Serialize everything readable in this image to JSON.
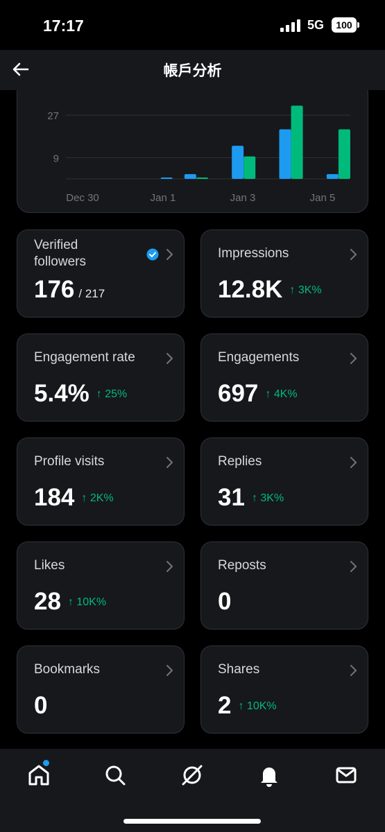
{
  "status_bar": {
    "time": "17:17",
    "network": "5G",
    "battery": "100"
  },
  "header": {
    "title": "帳戶分析"
  },
  "chart_data": {
    "type": "bar",
    "y_ticks": [
      9,
      27
    ],
    "x_tick_labels": [
      "Dec 30",
      "Jan 1",
      "Jan 3",
      "Jan 5"
    ],
    "colors": {
      "blue": "#1d9bf0",
      "green": "#00ba7c"
    },
    "series": [
      {
        "color": "blue",
        "x": [
          4,
          5,
          7,
          9,
          11
        ],
        "values": [
          0.6,
          2,
          14,
          21,
          2
        ]
      },
      {
        "color": "green",
        "x": [
          5.5,
          7.5,
          9.5,
          11.5
        ],
        "values": [
          0.6,
          9.5,
          31,
          21
        ]
      }
    ]
  },
  "metrics": [
    {
      "label": "Verified followers",
      "value": "176",
      "sub": "/ 217",
      "change": "",
      "verified": true
    },
    {
      "label": "Impressions",
      "value": "12.8K",
      "sub": "",
      "change": "↑ 3K%"
    },
    {
      "label": "Engagement rate",
      "value": "5.4%",
      "sub": "",
      "change": "↑ 25%"
    },
    {
      "label": "Engagements",
      "value": "697",
      "sub": "",
      "change": "↑ 4K%"
    },
    {
      "label": "Profile visits",
      "value": "184",
      "sub": "",
      "change": "↑ 2K%"
    },
    {
      "label": "Replies",
      "value": "31",
      "sub": "",
      "change": "↑ 3K%"
    },
    {
      "label": "Likes",
      "value": "28",
      "sub": "",
      "change": "↑ 10K%"
    },
    {
      "label": "Reposts",
      "value": "0",
      "sub": "",
      "change": ""
    },
    {
      "label": "Bookmarks",
      "value": "0",
      "sub": "",
      "change": ""
    },
    {
      "label": "Shares",
      "value": "2",
      "sub": "",
      "change": "↑ 10K%"
    }
  ],
  "nav": {
    "items": [
      "home-icon",
      "search-icon",
      "grok-icon",
      "notifications-icon",
      "messages-icon"
    ],
    "home_has_dot": true
  }
}
